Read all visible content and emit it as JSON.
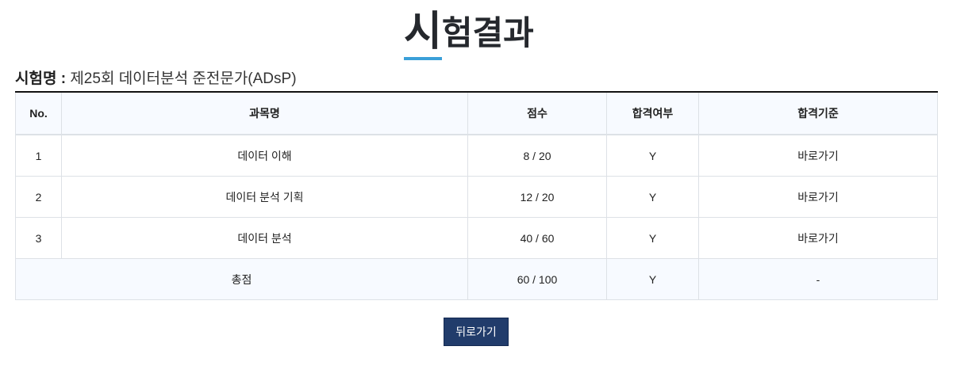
{
  "title": {
    "first_char": "시",
    "rest": "험결과"
  },
  "exam": {
    "label": "시험명 :",
    "value": "제25회 데이터분석 준전문가(ADsP)"
  },
  "table": {
    "headers": [
      "No.",
      "과목명",
      "점수",
      "합격여부",
      "합격기준"
    ],
    "rows": [
      {
        "no": "1",
        "subject": "데이터 이해",
        "score": "8 / 20",
        "pass": "Y",
        "criteria": "바로가기"
      },
      {
        "no": "2",
        "subject": "데이터 분석 기획",
        "score": "12 / 20",
        "pass": "Y",
        "criteria": "바로가기"
      },
      {
        "no": "3",
        "subject": "데이터 분석",
        "score": "40 / 60",
        "pass": "Y",
        "criteria": "바로가기"
      }
    ],
    "total": {
      "label": "총점",
      "score": "60 / 100",
      "pass": "Y",
      "criteria": "-"
    }
  },
  "back_button": "뒤로가기",
  "colors": {
    "accent": "#3a9fd8",
    "button": "#213c6b",
    "header_bg": "#f7faff"
  }
}
